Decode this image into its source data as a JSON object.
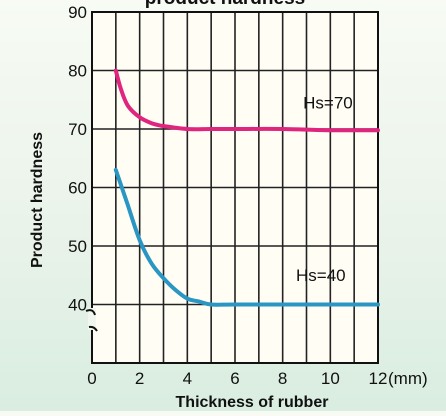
{
  "chart_data": {
    "type": "line",
    "title": "product hardness",
    "xlabel": "Thickness of rubber",
    "ylabel": "Product hardness",
    "x_unit_label": "(mm)",
    "xlim": [
      0,
      12
    ],
    "ylim": [
      30,
      90
    ],
    "x_ticks": [
      0,
      2,
      4,
      6,
      8,
      10,
      12
    ],
    "y_ticks": [
      40,
      50,
      60,
      70,
      80,
      90
    ],
    "grid": true,
    "axis_break": "y",
    "series": [
      {
        "name": "Hs=70",
        "color": "#e0257e",
        "x": [
          1,
          1.2,
          1.5,
          2,
          2.5,
          3,
          4,
          5,
          6,
          8,
          10,
          12
        ],
        "y": [
          80,
          77,
          74,
          72,
          71,
          70.5,
          70,
          70,
          70,
          70,
          69.8,
          69.8
        ]
      },
      {
        "name": "Hs=40",
        "color": "#2a96c4",
        "x": [
          1,
          1.5,
          2,
          2.5,
          3,
          3.5,
          4,
          4.5,
          5,
          6,
          8,
          10,
          12
        ],
        "y": [
          63,
          57,
          51,
          47,
          44.5,
          42.5,
          41,
          40.5,
          40,
          40,
          40,
          40,
          40
        ]
      }
    ]
  }
}
